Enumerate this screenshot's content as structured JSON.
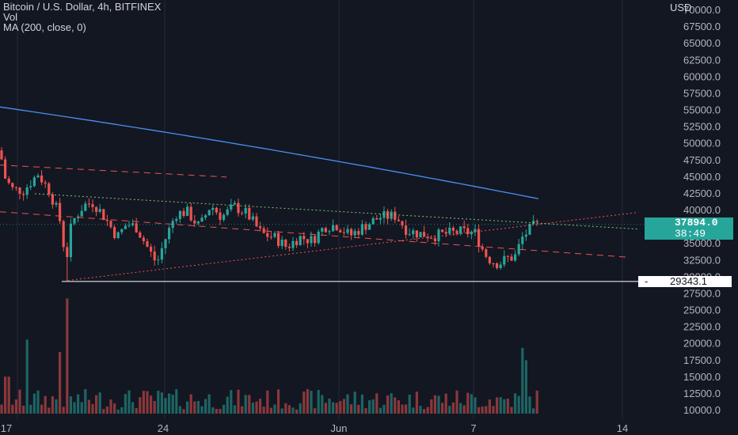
{
  "legend": {
    "line1": "Bitcoin / U.S. Dollar, 4h, BITFINEX",
    "line2": "Vol",
    "line3": "MA (200, close, 0)"
  },
  "currency_label": "USD",
  "last_price": {
    "value": "37894.0",
    "countdown": "38:49"
  },
  "marked_low": {
    "value": "29343.1"
  },
  "colors": {
    "up": "#26a69a",
    "down": "#ef5350",
    "ma": "#2962ff",
    "background": "#131722",
    "grid": "#363a45",
    "axis_text": "#b2b5be"
  },
  "chart_data": {
    "type": "candlestick",
    "title": "Bitcoin / U.S. Dollar, 4h, BITFINEX",
    "y_axis": {
      "ticks": [
        "70000.0",
        "67500.0",
        "65000.0",
        "62500.0",
        "60000.0",
        "57500.0",
        "55000.0",
        "52500.0",
        "50000.0",
        "47500.0",
        "45000.0",
        "42500.0",
        "40000.0",
        "37500.0",
        "35000.0",
        "32500.0",
        "30000.0",
        "27500.0",
        "25000.0",
        "22500.0",
        "20000.0",
        "17500.0",
        "15000.0",
        "12500.0",
        "10000.0"
      ],
      "price_range": [
        27500,
        70000
      ]
    },
    "x_axis": {
      "ticks": [
        "17",
        "24",
        "Jun",
        "7",
        "14"
      ]
    },
    "series_summary": {
      "start_price": 49000,
      "crash_low": 29343.1,
      "last_close": 37894.0,
      "dip_low": 31000
    },
    "ma200": {
      "from": 55500,
      "to": 41700
    },
    "trendlines": [
      {
        "style": "dashed-red",
        "from": 46800,
        "to": 45000
      },
      {
        "style": "dotted-green",
        "from": 42500,
        "to": 37200
      },
      {
        "style": "dotted-red",
        "from": 29500,
        "to": 39700
      },
      {
        "style": "dashed-red",
        "from": 39800,
        "to": 33000
      }
    ]
  }
}
